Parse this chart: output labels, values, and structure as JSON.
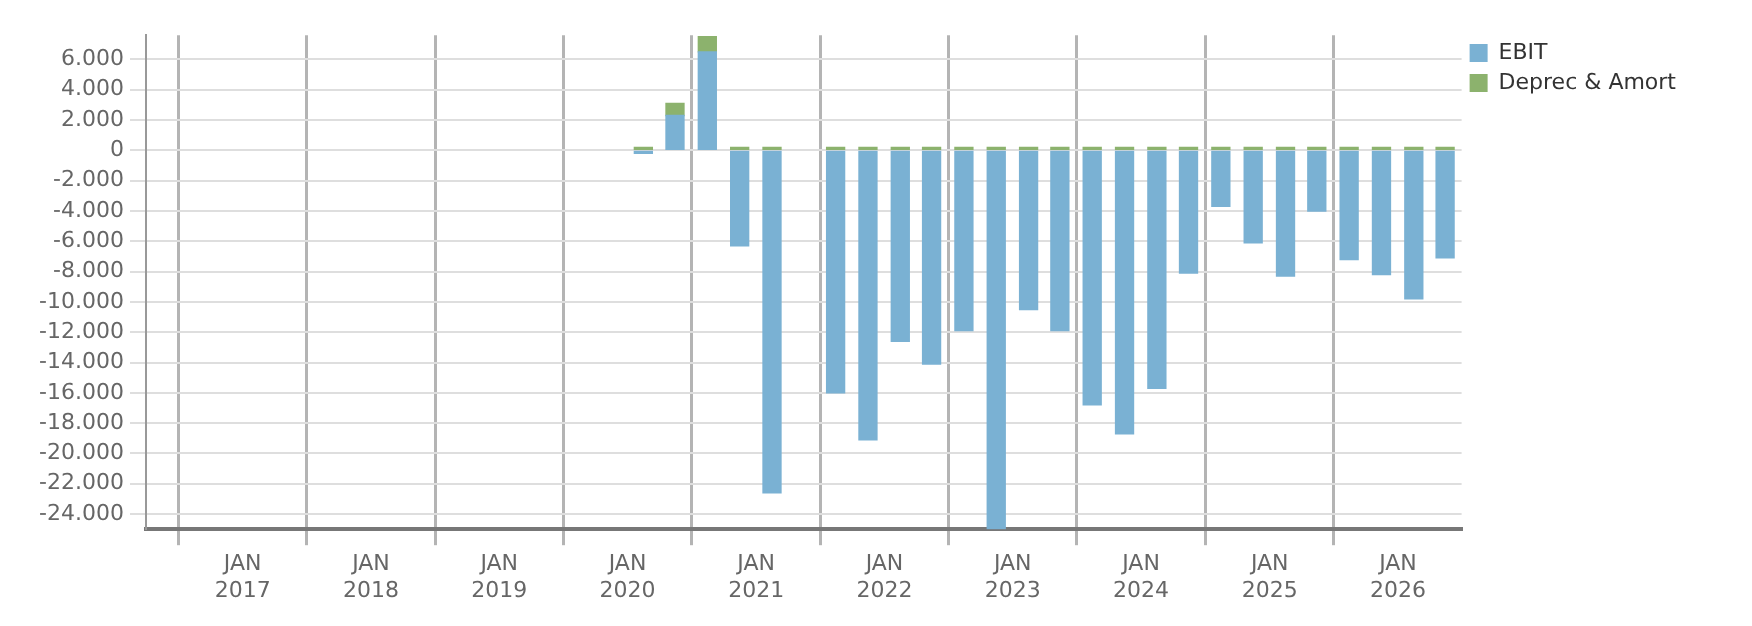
{
  "chart_data": {
    "type": "bar",
    "stacked": true,
    "x": [
      "2020-02-15",
      "2020-05-15",
      "2020-08-15",
      "2020-11-15",
      "2021-02-15",
      "2021-08-15",
      "2021-11-15",
      "2022-02-15",
      "2022-05-15",
      "2022-08-15",
      "2022-11-15",
      "2023-02-15",
      "2023-05-15",
      "2023-08-15",
      "2023-11-15",
      "2024-02-15",
      "2024-05-15",
      "2024-08-15",
      "2024-11-15",
      "2025-02-15",
      "2025-05-15",
      "2025-08-15",
      "2025-11-15",
      "2026-02-15",
      "2026-05-15"
    ],
    "series": [
      {
        "name": "EBIT",
        "color": "#7ab1d3",
        "values": [
          -200,
          2300,
          6500,
          -6300,
          -22600,
          -16000,
          -19100,
          -12600,
          -14100,
          -11900,
          -25000,
          -10500,
          -11900,
          -16800,
          -18700,
          -15700,
          -8100,
          -3700,
          -6100,
          -8300,
          -4000,
          -7200,
          -8200,
          -9800,
          -7100
        ]
      },
      {
        "name": "Deprec & Amort",
        "color": "#8cb26d",
        "values": [
          200,
          800,
          1000,
          200,
          200,
          200,
          200,
          200,
          200,
          200,
          200,
          200,
          200,
          200,
          200,
          200,
          200,
          200,
          200,
          200,
          200,
          200,
          200,
          200,
          200
        ]
      }
    ],
    "xlim": [
      "2016-04-01",
      "2026-07-01"
    ],
    "xticks": [
      {
        "value": "2017-01-01",
        "label": "JAN 2017"
      },
      {
        "value": "2018-01-01",
        "label": "JAN 2018"
      },
      {
        "value": "2019-01-01",
        "label": "JAN 2019"
      },
      {
        "value": "2020-01-01",
        "label": "JAN 2020"
      },
      {
        "value": "2021-01-01",
        "label": "JAN 2021"
      },
      {
        "value": "2022-01-01",
        "label": "JAN 2022"
      },
      {
        "value": "2023-01-01",
        "label": "JAN 2023"
      },
      {
        "value": "2024-01-01",
        "label": "JAN 2024"
      },
      {
        "value": "2025-01-01",
        "label": "JAN 2025"
      },
      {
        "value": "2026-01-01",
        "label": "JAN 2026"
      }
    ],
    "ylim": [
      -25000,
      7600
    ],
    "yticks": [
      {
        "value": 6000,
        "label": "6.000"
      },
      {
        "value": 4000,
        "label": "4.000"
      },
      {
        "value": 2000,
        "label": "2.000"
      },
      0,
      {
        "value": -2000,
        "label": "-2.000"
      },
      {
        "value": -4000,
        "label": "-4.000"
      },
      {
        "value": -6000,
        "label": "-6.000"
      },
      {
        "value": -8000,
        "label": "-8.000"
      },
      {
        "value": -10000,
        "label": "-10.000"
      },
      {
        "value": -12000,
        "label": "-12.000"
      },
      {
        "value": -14000,
        "label": "-14.000"
      },
      {
        "value": -16000,
        "label": "-16.000"
      },
      {
        "value": -18000,
        "label": "-18.000"
      },
      {
        "value": -20000,
        "label": "-20.000"
      },
      {
        "value": -22000,
        "label": "-22.000"
      },
      {
        "value": -24000,
        "label": "-24.000"
      }
    ],
    "grid": true,
    "legend": "top right"
  }
}
